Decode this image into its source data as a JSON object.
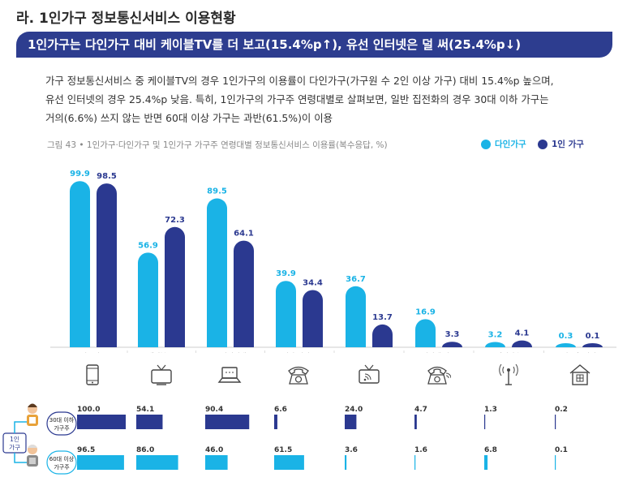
{
  "section_title": "라. 1인가구 정보통신서비스 이용현황",
  "headline": "1인가구는 다인가구 대비 케이블TV를 더 보고(15.4%p↑), 유선 인터넷은 덜 써(25.4%p↓)",
  "body_lines": [
    "가구 정보통신서비스 중 케이블TV의 경우 1인가구의 이용률이 다인가구(가구원 수 2인 이상 가구) 대비 15.4%p 높으며,",
    "유선 인터넷의 경우 25.4%p 낮음. 특히, 1인가구의 가구주 연령대별로 살펴보면, 일반 집전화의 경우 30대 이하 가구는",
    "거의(6.6%) 쓰지 않는 반면 60대 이상 가구는 과반(61.5%)이 이용"
  ],
  "figure_caption": "그림 43 • 1인가구·다인가구 및 1인가구 가구주 연령대별 정보통신서비스 이용률(복수응답, %)",
  "colors": {
    "multi": "#1ab3e6",
    "single": "#2b3990",
    "headline_bg": "#2d3d8f"
  },
  "chart_data": {
    "type": "bar",
    "title": "1인가구·다인가구 및 1인가구 가구주 연령대별 정보통신서비스 이용률(복수응답, %)",
    "categories": [
      "이동전화",
      "케이블TV",
      "유선인터넷",
      "일반 집전화",
      "IPTV",
      "인터넷 전화",
      "위성방송",
      "스마트홈 서비스"
    ],
    "icons": [
      "mobile-phone-icon",
      "tv-icon",
      "laptop-icon",
      "telephone-icon",
      "iptv-icon",
      "internet-phone-icon",
      "satellite-icon",
      "smart-home-icon"
    ],
    "series": [
      {
        "name": "다인가구",
        "values": [
          99.9,
          56.9,
          89.5,
          39.9,
          36.7,
          16.9,
          3.2,
          0.3
        ]
      },
      {
        "name": "1인 가구",
        "values": [
          98.5,
          72.3,
          64.1,
          34.4,
          13.7,
          3.3,
          4.1,
          0.1
        ]
      }
    ],
    "ylim": [
      0,
      100
    ],
    "sub_chart": {
      "group_label": "1인 가구",
      "series": [
        {
          "name": "30대 이하 가구주",
          "values": [
            100.0,
            54.1,
            90.4,
            6.6,
            24.0,
            4.7,
            1.3,
            0.2
          ]
        },
        {
          "name": "60대 이상 가구주",
          "values": [
            96.5,
            86.0,
            46.0,
            61.5,
            3.6,
            1.6,
            6.8,
            0.1
          ]
        }
      ]
    }
  }
}
